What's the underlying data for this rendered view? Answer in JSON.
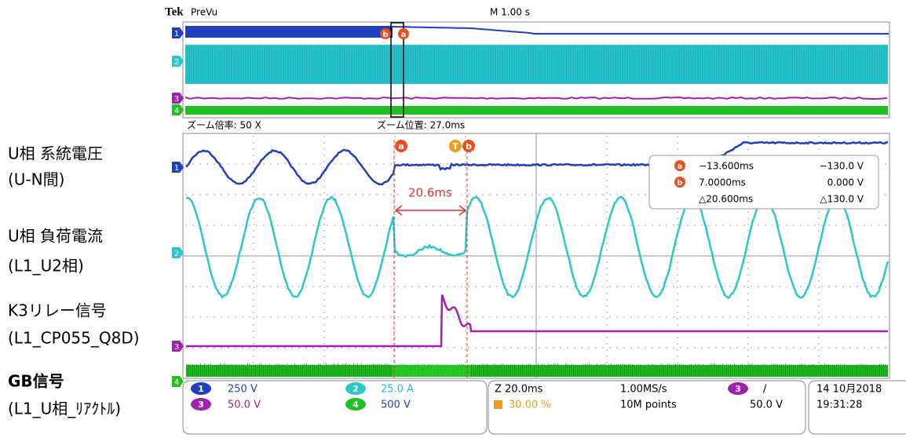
{
  "header": {
    "brand": "Tek",
    "mode": "PreVu",
    "timebase": "M 1.00 s"
  },
  "zoom": {
    "factor": "ズーム倍率: 50 X",
    "position": "ズーム位置: 27.0ms"
  },
  "channel_labels": [
    {
      "name": "U相 系統電圧",
      "detail": "(U-N間)"
    },
    {
      "name": "U相 負荷電流",
      "detail": "(L1_U2相)"
    },
    {
      "name": "K3リレー信号",
      "detail": "(L1_CP055_Q8D)"
    },
    {
      "name": "GB信号",
      "detail": "(L1_U相_ﾘｱｸﾄﾙ)"
    }
  ],
  "channel_markers": [
    "1",
    "2",
    "3",
    "4"
  ],
  "cursor_labels": [
    "a",
    "b"
  ],
  "trigger_icon": "T",
  "cursor_readout": {
    "a": {
      "marker": "a",
      "time": "−13.600ms",
      "value": "−130.0 V"
    },
    "b": {
      "marker": "b",
      "time": "7.0000ms",
      "value": "0.000 V"
    },
    "delta": {
      "time": "△20.600ms",
      "value": "△130.0 V"
    }
  },
  "annotation": "20.6ms",
  "status": {
    "ch1": "250 V",
    "ch3": "50.0 V",
    "ch2": "25.0 A",
    "ch4": "500 V",
    "zoom": "Z 20.0ms",
    "trigger_pos": "30.00 %",
    "sample_rate": "1.00MS/s",
    "record": "10M points",
    "trigger_slope": "/",
    "trigger_level": "50.0 V",
    "date": "14 10月2018",
    "time": "19:31:28"
  }
}
